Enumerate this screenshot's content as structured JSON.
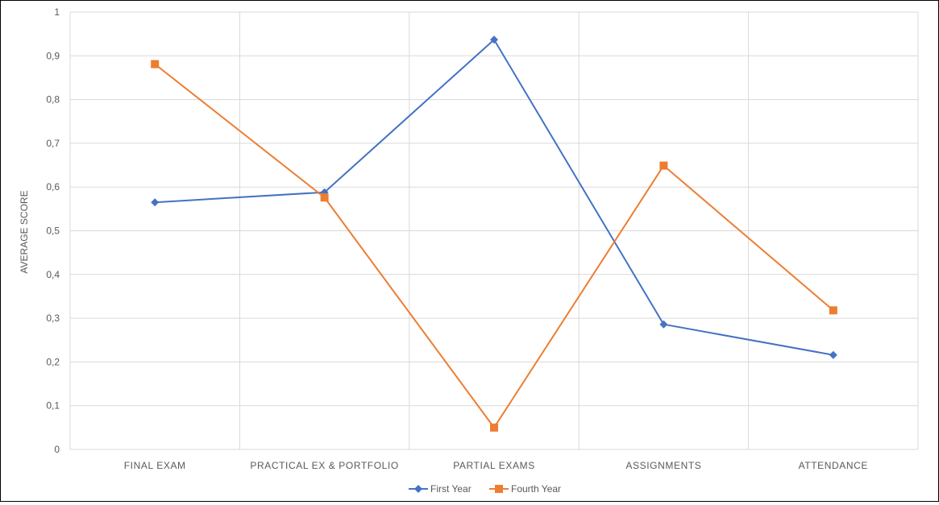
{
  "chart_data": {
    "type": "line",
    "title": "",
    "xlabel": "",
    "ylabel": "AVERAGE SCORE",
    "ylim": [
      0,
      1
    ],
    "yticks": [
      0,
      0.1,
      0.2,
      0.3,
      0.4,
      0.5,
      0.6,
      0.7,
      0.8,
      0.9,
      1
    ],
    "ytick_labels": [
      "0",
      "0,1",
      "0,2",
      "0,3",
      "0,4",
      "0,5",
      "0,6",
      "0,7",
      "0,8",
      "0,9",
      "1"
    ],
    "categories": [
      "FINAL EXAM",
      "PRACTICAL EX & PORTFOLIO",
      "PARTIAL EXAMS",
      "ASSIGNMENTS",
      "ATTENDANCE"
    ],
    "grid": true,
    "legend_position": "bottom",
    "series": [
      {
        "name": "First Year",
        "color": "#4472C4",
        "marker": "diamond",
        "values": [
          0.565,
          0.588,
          0.937,
          0.286,
          0.216
        ]
      },
      {
        "name": "Fourth Year",
        "color": "#ED7D31",
        "marker": "square",
        "values": [
          0.881,
          0.576,
          0.05,
          0.649,
          0.318
        ]
      }
    ]
  }
}
